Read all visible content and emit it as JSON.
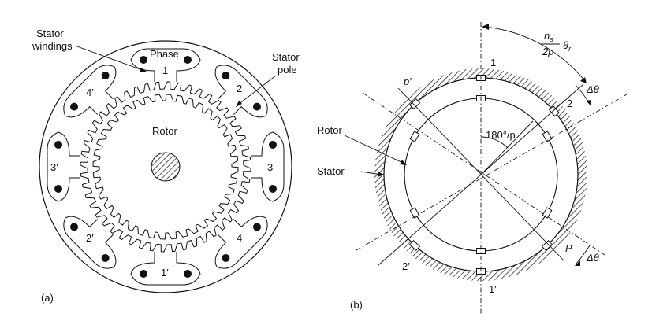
{
  "figure_a": {
    "label_stator_windings_1": "Stator",
    "label_stator_windings_2": "windings",
    "label_phase": "Phase",
    "label_stator_pole_1": "Stator",
    "label_stator_pole_2": "pole",
    "label_rotor": "Rotor",
    "pole_labels": [
      "1",
      "2",
      "3",
      "4",
      "1′",
      "2′",
      "3′",
      "4′"
    ],
    "panel_tag": "(a)"
  },
  "figure_b": {
    "label_rotor": "Rotor",
    "label_stator": "Stator",
    "angle_formula_num": "n",
    "angle_formula_num_sub": "s",
    "angle_formula_den": "2p",
    "angle_formula_theta": "θ",
    "angle_formula_theta_sub": "r",
    "label_180p": "180°/p",
    "label_delta_theta_top": "Δθ",
    "label_delta_theta_bottom": "Δθ",
    "tooth_labels": [
      "1",
      "2",
      "p′",
      "P",
      "2′",
      "1′"
    ],
    "panel_tag": "(b)"
  },
  "colors": {
    "ink": "#111111",
    "background": "#ffffff"
  }
}
